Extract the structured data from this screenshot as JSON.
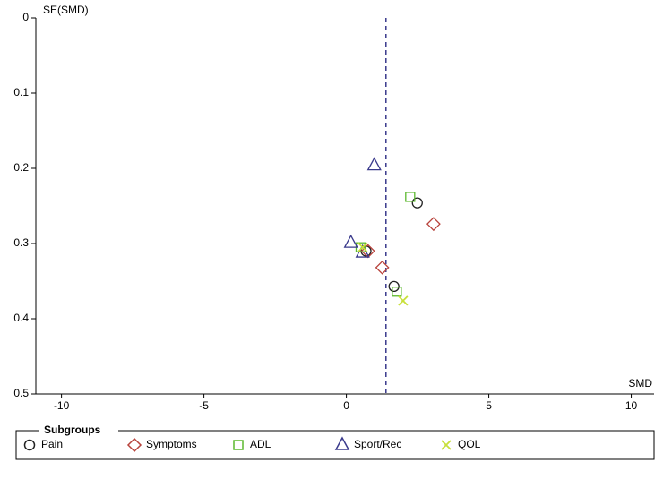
{
  "chart_data": {
    "type": "scatter",
    "x_label": "SMD",
    "y_label": "SE(SMD)",
    "xlim": [
      -10.9,
      10.8
    ],
    "ylim": [
      0,
      0.5
    ],
    "y_inverted": true,
    "xticks": [
      -10,
      -5,
      0,
      5,
      10
    ],
    "yticks": [
      0,
      0.1,
      0.2,
      0.3,
      0.4,
      0.5
    ],
    "reference_line_x": 1.39,
    "legend_title": "Subgroups",
    "series": [
      {
        "name": "Pain",
        "color": "#222222",
        "marker": "circle",
        "x": [
          2.49,
          0.69,
          1.67
        ],
        "y": [
          0.246,
          0.31,
          0.357
        ]
      },
      {
        "name": "Symptoms",
        "color": "#b8433c",
        "marker": "diamond",
        "x": [
          3.06,
          1.26,
          0.76
        ],
        "y": [
          0.274,
          0.332,
          0.31
        ]
      },
      {
        "name": "ADL",
        "color": "#5cb82e",
        "marker": "square",
        "x": [
          2.24,
          0.5,
          1.77
        ],
        "y": [
          0.238,
          0.305,
          0.364
        ]
      },
      {
        "name": "Sport/Rec",
        "color": "#3a3a8c",
        "marker": "triangle",
        "x": [
          0.98,
          0.16,
          0.57
        ],
        "y": [
          0.196,
          0.299,
          0.312
        ]
      },
      {
        "name": "QOL",
        "color": "#c8e03a",
        "marker": "cross",
        "x": [
          1.99,
          0.57
        ],
        "y": [
          0.376,
          0.305
        ]
      }
    ]
  }
}
